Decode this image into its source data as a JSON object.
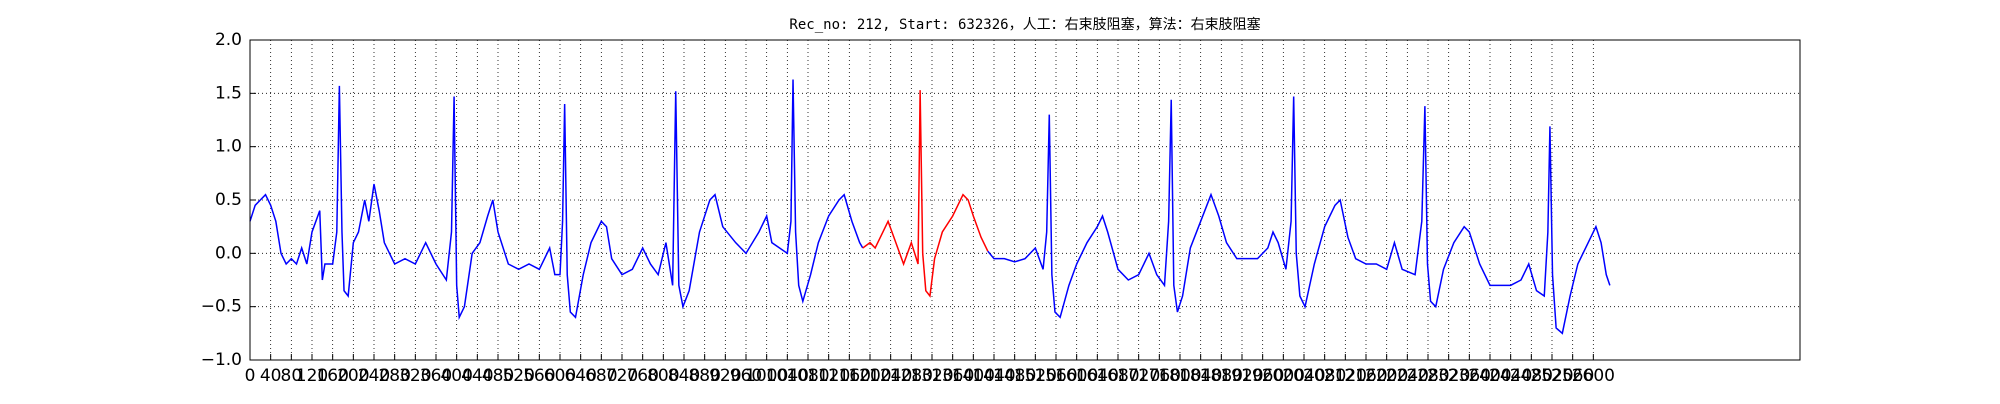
{
  "chart_data": {
    "type": "line",
    "title": "Rec_no: 212, Start: 632326，人工：右束肢阻塞，算法：右束肢阻塞",
    "xlim": [
      0,
      3000
    ],
    "xticks": [
      0,
      40,
      80,
      120,
      160,
      200,
      240,
      280,
      320,
      360,
      400,
      440,
      480,
      520,
      560,
      600,
      640,
      680,
      720,
      760,
      800,
      840,
      880,
      920,
      960,
      1000,
      1040,
      1080,
      1120,
      1160,
      1200,
      1240,
      1280,
      1320,
      1360,
      1400,
      1440,
      1480,
      1520,
      1560,
      1600,
      1640,
      1680,
      1720,
      1760,
      1800,
      1840,
      1880,
      1920,
      1960,
      2000,
      2040,
      2080,
      2120,
      2160,
      2200,
      2240,
      2280,
      2320,
      2360,
      2400,
      2440,
      2480,
      2520,
      2560,
      2600
    ],
    "ylim": [
      -1,
      2
    ],
    "yticks": [
      {
        "value": -1,
        "label": "−1.0"
      },
      {
        "value": -0.5,
        "label": "−0.5"
      },
      {
        "value": 0,
        "label": "0.0"
      },
      {
        "value": 0.5,
        "label": "0.5"
      },
      {
        "value": 1,
        "label": "1.0"
      },
      {
        "value": 1.5,
        "label": "1.5"
      },
      {
        "value": 2,
        "label": "2.0"
      }
    ],
    "grid": true,
    "series": [
      {
        "color": "#0000ff",
        "x": [
          0,
          10,
          20,
          30,
          40,
          50,
          60,
          70,
          80,
          90,
          100,
          110,
          120,
          135,
          140,
          145,
          160,
          168,
          173,
          178,
          182,
          190,
          200,
          210,
          222,
          230,
          240,
          250,
          260,
          270,
          280,
          300,
          320,
          340,
          360,
          380,
          390,
          395,
          400,
          405,
          415,
          430,
          445,
          460,
          470,
          480,
          500,
          520,
          540,
          560,
          580,
          590,
          600,
          605,
          609,
          614,
          620,
          630,
          645,
          660,
          680,
          690,
          700,
          720,
          740,
          760,
          775,
          790,
          805,
          818,
          824,
          830,
          838,
          850,
          870,
          890,
          900,
          915,
          940,
          960,
          985,
          1000,
          1010,
          1040,
          1047,
          1051,
          1056,
          1062,
          1070,
          1085,
          1100,
          1120,
          1140,
          1150,
          1165,
          1180,
          1186,
          1300,
          1428,
          1440,
          1460,
          1480,
          1500,
          1520,
          1535,
          1542,
          1547,
          1552,
          1558,
          1568,
          1585,
          1600,
          1620,
          1640,
          1650,
          1660,
          1680,
          1700,
          1720,
          1740,
          1755,
          1770,
          1778,
          1783,
          1788,
          1795,
          1805,
          1820,
          1840,
          1860,
          1875,
          1890,
          1910,
          1930,
          1950,
          1970,
          1980,
          1990,
          2005,
          2015,
          2020,
          2025,
          2032,
          2042,
          2060,
          2080,
          2100,
          2110,
          2125,
          2140,
          2160,
          2180,
          2200,
          2215,
          2230,
          2255,
          2268,
          2274,
          2279,
          2285,
          2295,
          2310,
          2330,
          2350,
          2360,
          2380,
          2400,
          2420,
          2440,
          2460,
          2475,
          2490,
          2505,
          2512,
          2516,
          2521,
          2528,
          2540,
          2555,
          2570,
          2590,
          2605,
          2615,
          2625,
          2632
        ],
        "values": [
          0.3,
          0.45,
          0.5,
          0.55,
          0.45,
          0.3,
          0,
          -0.1,
          -0.05,
          -0.1,
          0.05,
          -0.1,
          0.2,
          0.4,
          -0.25,
          -0.1,
          -0.1,
          0.2,
          1.57,
          0.2,
          -0.35,
          -0.4,
          0.1,
          0.2,
          0.5,
          0.3,
          0.65,
          0.4,
          0.1,
          0,
          -0.1,
          -0.05,
          -0.1,
          0.1,
          -0.1,
          -0.25,
          0.2,
          1.47,
          -0.3,
          -0.6,
          -0.5,
          0,
          0.1,
          0.35,
          0.5,
          0.2,
          -0.1,
          -0.15,
          -0.1,
          -0.15,
          0.05,
          -0.2,
          -0.2,
          0.3,
          1.4,
          -0.2,
          -0.55,
          -0.6,
          -0.2,
          0.1,
          0.3,
          0.25,
          -0.05,
          -0.2,
          -0.15,
          0.05,
          -0.1,
          -0.2,
          0.1,
          -0.3,
          1.52,
          -0.3,
          -0.5,
          -0.35,
          0.2,
          0.5,
          0.55,
          0.25,
          0.1,
          0,
          0.2,
          0.35,
          0.1,
          0,
          0.3,
          1.63,
          0.2,
          -0.3,
          -0.45,
          -0.2,
          0.1,
          0.35,
          0.5,
          0.55,
          0.3,
          0.1,
          0.05,
          null,
          0.02,
          -0.05,
          -0.05,
          -0.08,
          -0.05,
          0.05,
          -0.15,
          0.2,
          1.3,
          -0.2,
          -0.55,
          -0.6,
          -0.3,
          -0.1,
          0.1,
          0.25,
          0.35,
          0.2,
          -0.15,
          -0.25,
          -0.2,
          0,
          -0.2,
          -0.3,
          0.3,
          1.44,
          -0.3,
          -0.55,
          -0.4,
          0.05,
          0.3,
          0.55,
          0.35,
          0.1,
          -0.05,
          -0.05,
          -0.05,
          0.05,
          0.2,
          0.1,
          -0.15,
          0.3,
          1.47,
          0,
          -0.4,
          -0.5,
          -0.1,
          0.25,
          0.45,
          0.5,
          0.15,
          -0.05,
          -0.1,
          -0.1,
          -0.15,
          0.1,
          -0.15,
          -0.2,
          0.3,
          1.38,
          -0.1,
          -0.45,
          -0.5,
          -0.15,
          0.1,
          0.25,
          0.2,
          -0.1,
          -0.3,
          -0.3,
          -0.3,
          -0.25,
          -0.1,
          -0.35,
          -0.4,
          0.2,
          1.19,
          -0.2,
          -0.7,
          -0.75,
          -0.4,
          -0.1,
          0.1,
          0.25,
          0.1,
          -0.2,
          -0.3
        ]
      },
      {
        "color": "#ff0000",
        "x": [
          1186,
          1200,
          1210,
          1220,
          1235,
          1250,
          1265,
          1280,
          1293,
          1297,
          1302,
          1308,
          1316,
          1325,
          1340,
          1360,
          1380,
          1390,
          1400,
          1415,
          1428
        ],
        "values": [
          0.05,
          0.1,
          0.05,
          0.15,
          0.3,
          0.1,
          -0.1,
          0.1,
          -0.1,
          1.53,
          0,
          -0.35,
          -0.4,
          -0.05,
          0.2,
          0.35,
          0.55,
          0.5,
          0.35,
          0.15,
          0.02
        ]
      }
    ]
  }
}
